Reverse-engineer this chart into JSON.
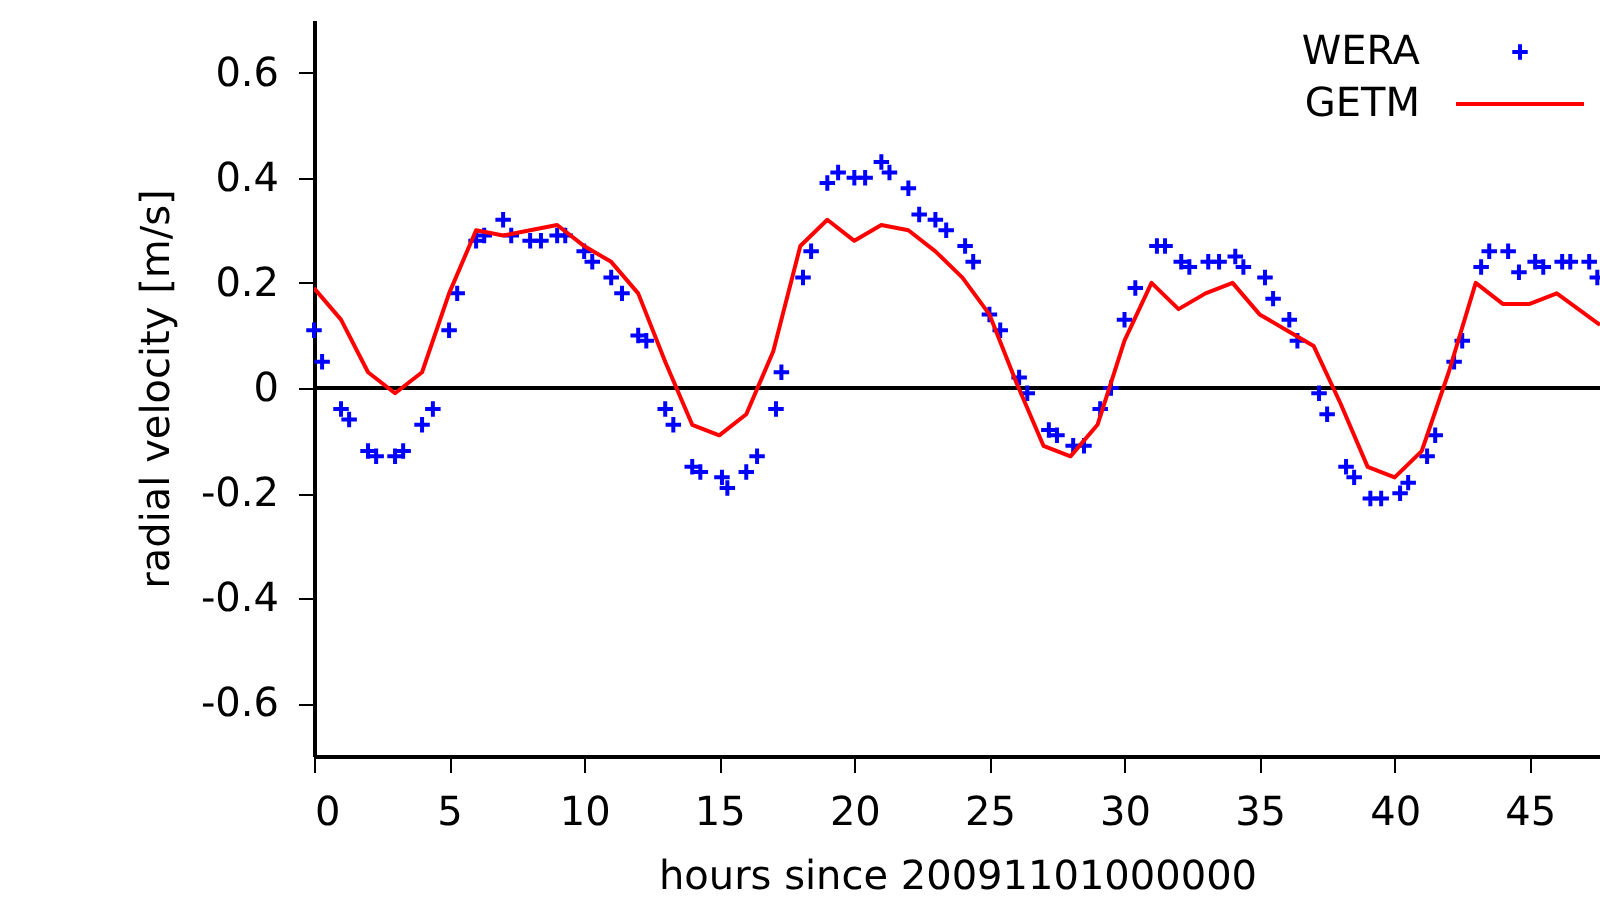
{
  "chart_data": {
    "type": "line",
    "xlabel": "hours since 20091101000000",
    "ylabel": "radial velocity [m/s]",
    "xlim": [
      0,
      47.6
    ],
    "ylim": [
      -0.7,
      0.7
    ],
    "xticks": [
      0,
      5,
      10,
      15,
      20,
      25,
      30,
      35,
      40,
      45
    ],
    "yticks": [
      -0.6,
      -0.4,
      -0.2,
      0,
      0.2,
      0.4,
      0.6
    ],
    "grid": false,
    "legend": "top right",
    "ref_lines": [
      {
        "axis": "y",
        "value": 0,
        "color": "#000000"
      }
    ],
    "series": [
      {
        "name": "WERA",
        "type": "scatter",
        "marker": "cross",
        "color": "#0000ff",
        "x": [
          0,
          0.3,
          1,
          1.3,
          2,
          2.3,
          3,
          3.3,
          4,
          4.4,
          5,
          5.3,
          6,
          6.3,
          7,
          7.3,
          8,
          8.4,
          9,
          9.3,
          10,
          10.3,
          11,
          11.4,
          12,
          12.3,
          13,
          13.3,
          14,
          14.3,
          15.1,
          15.3,
          16,
          16.4,
          17.1,
          17.3,
          18.1,
          18.4,
          19,
          19.4,
          20,
          20.4,
          21,
          21.3,
          22,
          22.4,
          23,
          23.4,
          24.1,
          24.4,
          25,
          25.4,
          26.1,
          26.4,
          27.2,
          27.5,
          28.1,
          28.5,
          29.1,
          29.5,
          30,
          30.4,
          31.2,
          31.5,
          32.1,
          32.4,
          33.1,
          33.5,
          34.1,
          34.4,
          35.2,
          35.5,
          36.1,
          36.4,
          37.2,
          37.5,
          38.2,
          38.5,
          39.1,
          39.5,
          40.2,
          40.5,
          41.2,
          41.5,
          42.2,
          42.5,
          43.2,
          43.5,
          44.2,
          44.6,
          45.2,
          45.5,
          46.2,
          46.5,
          47.2,
          47.5
        ],
        "values": [
          0.11,
          0.05,
          -0.04,
          -0.06,
          -0.12,
          -0.13,
          -0.13,
          -0.12,
          -0.07,
          -0.04,
          0.11,
          0.18,
          0.28,
          0.29,
          0.32,
          0.29,
          0.28,
          0.28,
          0.29,
          0.29,
          0.26,
          0.24,
          0.21,
          0.18,
          0.1,
          0.09,
          -0.04,
          -0.07,
          -0.15,
          -0.16,
          -0.17,
          -0.19,
          -0.16,
          -0.13,
          -0.04,
          0.03,
          0.21,
          0.26,
          0.39,
          0.41,
          0.4,
          0.4,
          0.43,
          0.41,
          0.38,
          0.33,
          0.32,
          0.3,
          0.27,
          0.24,
          0.14,
          0.11,
          0.02,
          -0.01,
          -0.08,
          -0.09,
          -0.11,
          -0.11,
          -0.04,
          0.0,
          0.13,
          0.19,
          0.27,
          0.27,
          0.24,
          0.23,
          0.24,
          0.24,
          0.25,
          0.23,
          0.21,
          0.17,
          0.13,
          0.09,
          -0.01,
          -0.05,
          -0.15,
          -0.17,
          -0.21,
          -0.21,
          -0.2,
          -0.18,
          -0.13,
          -0.09,
          0.05,
          0.09,
          0.23,
          0.26,
          0.26,
          0.22,
          0.24,
          0.23,
          0.24,
          0.24,
          0.24,
          0.21
        ]
      },
      {
        "name": "GETM",
        "type": "line",
        "marker": "none",
        "line_style": "solid",
        "color": "#ff0000",
        "x": [
          0,
          1,
          2,
          3,
          4,
          5,
          6,
          7,
          8,
          9,
          10,
          11,
          12,
          13,
          14,
          15,
          16,
          17,
          18,
          19,
          20,
          21,
          22,
          23,
          24,
          25,
          26,
          27,
          28,
          29,
          30,
          31,
          32,
          33,
          34,
          35,
          36,
          37,
          38,
          39,
          40,
          41,
          42,
          43,
          44,
          45,
          46,
          47.6
        ],
        "values": [
          0.19,
          0.13,
          0.03,
          -0.01,
          0.03,
          0.18,
          0.3,
          0.29,
          0.3,
          0.31,
          0.27,
          0.24,
          0.18,
          0.05,
          -0.07,
          -0.09,
          -0.05,
          0.07,
          0.27,
          0.32,
          0.28,
          0.31,
          0.3,
          0.26,
          0.21,
          0.14,
          0.01,
          -0.11,
          -0.13,
          -0.07,
          0.09,
          0.2,
          0.15,
          0.18,
          0.2,
          0.14,
          0.11,
          0.08,
          -0.03,
          -0.15,
          -0.17,
          -0.12,
          0.03,
          0.2,
          0.16,
          0.16,
          0.18,
          0.12
        ]
      }
    ]
  }
}
